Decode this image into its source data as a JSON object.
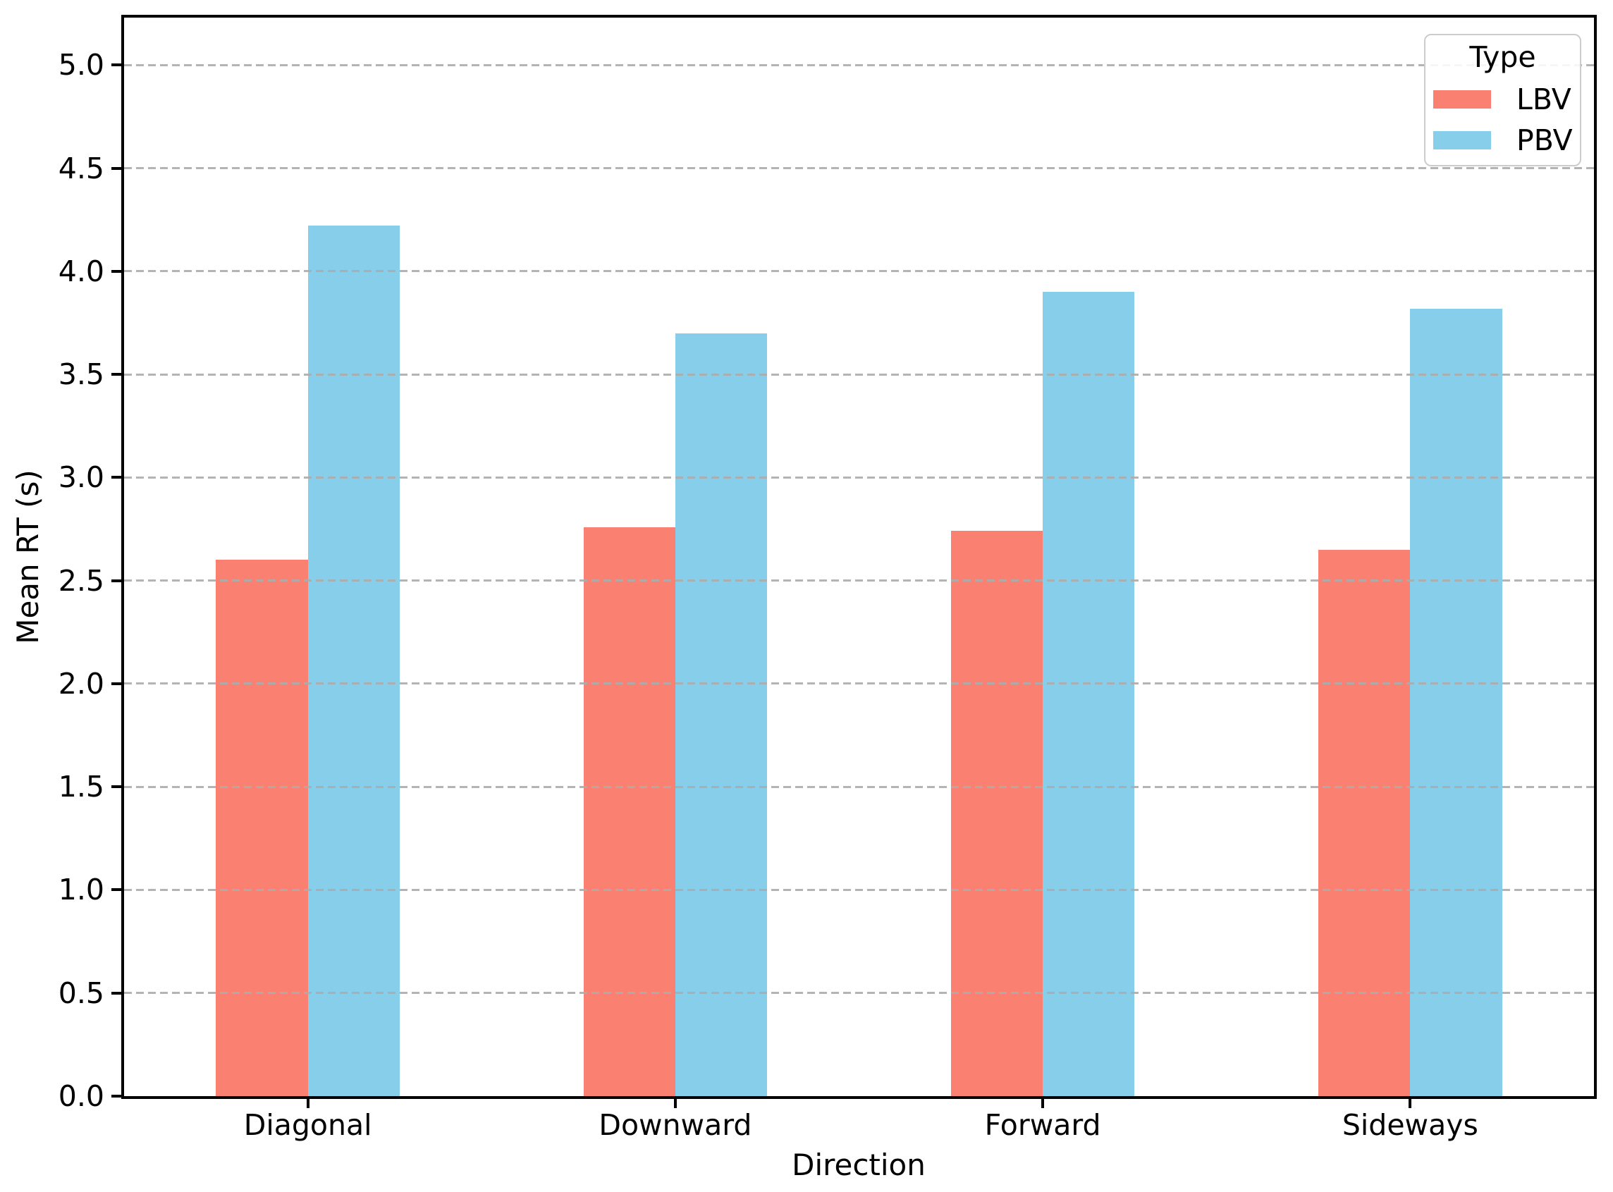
{
  "chart_data": {
    "type": "bar",
    "title": "",
    "xlabel": "Direction",
    "ylabel": "Mean RT (s)",
    "categories": [
      "Diagonal",
      "Downward",
      "Forward",
      "Sideways"
    ],
    "series": [
      {
        "name": "LBV",
        "color": "#FA8072",
        "values": [
          2.6,
          2.76,
          2.74,
          2.65
        ]
      },
      {
        "name": "PBV",
        "color": "#87CEEB",
        "values": [
          4.22,
          3.7,
          3.9,
          3.82
        ]
      }
    ],
    "legend": {
      "title": "Type",
      "position": "upper right",
      "entries": [
        "LBV",
        "PBV"
      ]
    },
    "ylim": [
      0,
      5.23
    ],
    "yticks": [
      "0.0",
      "0.5",
      "1.0",
      "1.5",
      "2.0",
      "2.5",
      "3.0",
      "3.5",
      "4.0",
      "4.5",
      "5.0"
    ],
    "grid": {
      "axis": "y",
      "style": "dashed",
      "color": "#acacac",
      "above_bars": true
    },
    "bar_width_fraction": 0.25,
    "colors": {
      "lbv": "#FA8072",
      "pbv": "#87CEEB",
      "spine": "#000000",
      "text": "#000000"
    }
  }
}
